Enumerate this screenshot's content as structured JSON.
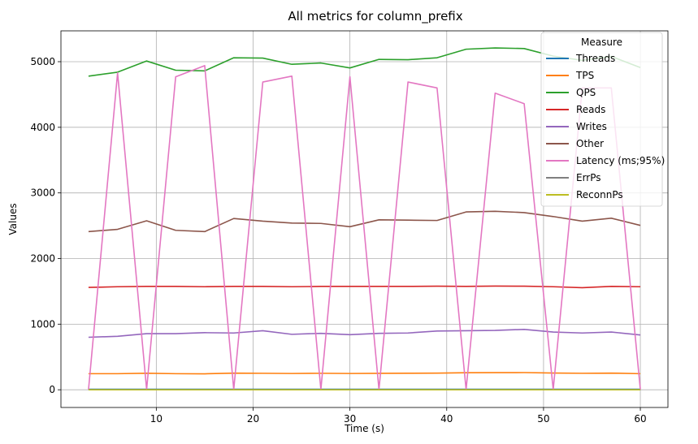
{
  "chart_data": {
    "type": "line",
    "title": "All metrics for column_prefix",
    "xlabel": "Time (s)",
    "ylabel": "Values",
    "xlim": [
      0.15,
      62.85
    ],
    "ylim": [
      -270,
      5470
    ],
    "xticks": [
      10,
      20,
      30,
      40,
      50,
      60
    ],
    "yticks": [
      0,
      1000,
      2000,
      3000,
      4000,
      5000
    ],
    "grid": true,
    "legend": {
      "title": "Measure",
      "placement": "top-right"
    },
    "x": [
      3,
      6,
      9,
      12,
      15,
      18,
      21,
      24,
      27,
      30,
      33,
      36,
      39,
      42,
      45,
      48,
      51,
      54,
      57,
      60
    ],
    "series": [
      {
        "name": "Threads",
        "color": "#1f77b4",
        "values": [
          8,
          8,
          8,
          8,
          8,
          8,
          8,
          8,
          8,
          8,
          8,
          8,
          8,
          8,
          8,
          8,
          8,
          8,
          8,
          8
        ]
      },
      {
        "name": "TPS",
        "color": "#ff7f0e",
        "values": [
          245,
          245,
          252,
          245,
          243,
          254,
          251,
          248,
          251,
          248,
          250,
          252,
          253,
          260,
          261,
          262,
          255,
          251,
          254,
          245
        ]
      },
      {
        "name": "QPS",
        "color": "#2ca02c",
        "values": [
          4780,
          4840,
          5010,
          4870,
          4860,
          5060,
          5055,
          4960,
          4980,
          4905,
          5035,
          5030,
          5060,
          5190,
          5210,
          5200,
          5085,
          5020,
          5080,
          4910
        ]
      },
      {
        "name": "Reads",
        "color": "#d62728",
        "values": [
          1560,
          1570,
          1575,
          1575,
          1570,
          1575,
          1575,
          1570,
          1575,
          1575,
          1575,
          1575,
          1578,
          1575,
          1580,
          1578,
          1570,
          1555,
          1575,
          1570
        ]
      },
      {
        "name": "Writes",
        "color": "#9467bd",
        "values": [
          800,
          815,
          855,
          855,
          870,
          865,
          900,
          845,
          860,
          840,
          860,
          865,
          895,
          900,
          905,
          920,
          880,
          865,
          880,
          835
        ]
      },
      {
        "name": "Other",
        "color": "#8c564b",
        "values": [
          2410,
          2445,
          2575,
          2430,
          2410,
          2610,
          2570,
          2540,
          2535,
          2485,
          2590,
          2585,
          2580,
          2710,
          2720,
          2700,
          2640,
          2570,
          2615,
          2505
        ]
      },
      {
        "name": "Latency (ms;95%)",
        "color": "#e377c2",
        "values": [
          5,
          4830,
          5,
          4770,
          4940,
          5,
          4690,
          4780,
          5,
          4770,
          5,
          4690,
          4600,
          5,
          4520,
          4360,
          5,
          4600,
          4600,
          5
        ]
      },
      {
        "name": "ErrPs",
        "color": "#7f7f7f",
        "values": [
          0,
          0,
          0,
          0,
          0,
          0,
          0,
          0,
          0,
          0,
          0,
          0,
          0,
          0,
          0,
          0,
          0,
          0,
          0,
          0
        ]
      },
      {
        "name": "ReconnPs",
        "color": "#bcbd22",
        "values": [
          0,
          0,
          0,
          0,
          0,
          0,
          0,
          0,
          0,
          0,
          0,
          0,
          0,
          0,
          0,
          0,
          0,
          0,
          0,
          0
        ]
      }
    ]
  }
}
